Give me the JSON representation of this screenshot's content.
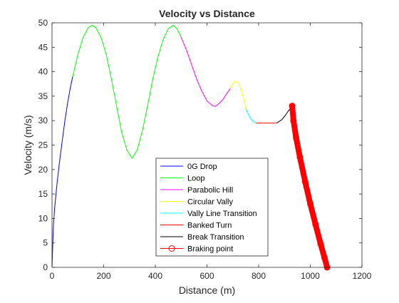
{
  "chart_data": {
    "type": "line",
    "title": "Velocity vs Distance",
    "xlabel": "Distance (m)",
    "ylabel": "Velocity (m/s)",
    "xlim": [
      0,
      1200
    ],
    "ylim": [
      0,
      50
    ],
    "xticks": [
      0,
      200,
      400,
      600,
      800,
      1000,
      1200
    ],
    "yticks": [
      0,
      5,
      10,
      15,
      20,
      25,
      30,
      35,
      40,
      45,
      50
    ],
    "grid": false,
    "legend_position": "bottom-center",
    "series": [
      {
        "name": "0G Drop",
        "color": "#0000ff",
        "x": [
          0,
          5,
          10,
          20,
          30,
          40,
          50,
          60,
          70,
          80
        ],
        "y": [
          0,
          8,
          12,
          17.5,
          22,
          26,
          30,
          33.5,
          36.5,
          39
        ]
      },
      {
        "name": "Loop",
        "color": "#00ff00",
        "x": [
          80,
          100,
          120,
          140,
          155,
          170,
          190,
          210,
          230,
          250,
          270,
          290,
          310,
          330,
          350,
          370,
          390,
          410,
          430,
          450,
          470,
          485,
          500
        ],
        "y": [
          39,
          43.5,
          47,
          49,
          49.5,
          49,
          47,
          43.5,
          38.5,
          33,
          27.5,
          24,
          22.3,
          24,
          28,
          33,
          38.5,
          43,
          46.5,
          48.8,
          49.5,
          48.7,
          47
        ]
      },
      {
        "name": "Parabolic Hill",
        "color": "#ff00ff",
        "x": [
          500,
          520,
          540,
          560,
          580,
          600,
          620,
          630,
          640,
          660,
          680,
          690
        ],
        "y": [
          47,
          44.5,
          41.5,
          38.5,
          36,
          34,
          33.1,
          32.9,
          33.2,
          34.2,
          35.8,
          36.5
        ]
      },
      {
        "name": "Circular Vally",
        "color": "#ffff00",
        "x": [
          690,
          700,
          710,
          720,
          730,
          740,
          750
        ],
        "y": [
          36.5,
          37.6,
          38,
          37.8,
          36.7,
          34.8,
          32.5
        ]
      },
      {
        "name": "Vally Line Transition",
        "color": "#00ffff",
        "x": [
          750,
          760,
          770,
          780,
          790
        ],
        "y": [
          32.5,
          31.3,
          30.4,
          29.8,
          29.5
        ]
      },
      {
        "name": "Banked Turn",
        "color": "#ff0000",
        "x": [
          790,
          820,
          850,
          870
        ],
        "y": [
          29.5,
          29.5,
          29.5,
          29.5
        ]
      },
      {
        "name": "Break Transition",
        "color": "#000000",
        "x": [
          870,
          890,
          905,
          915,
          925,
          930
        ],
        "y": [
          29.5,
          30.2,
          31.2,
          32,
          32.6,
          33
        ]
      },
      {
        "name": "Braking point",
        "color": "#ff0000",
        "marker": "circle",
        "x": [
          930,
          935,
          945,
          960,
          980,
          1000,
          1020,
          1040,
          1055,
          1065
        ],
        "y": [
          33,
          30,
          26.5,
          22.5,
          17.5,
          13,
          8.8,
          4.8,
          2,
          0
        ]
      }
    ]
  }
}
